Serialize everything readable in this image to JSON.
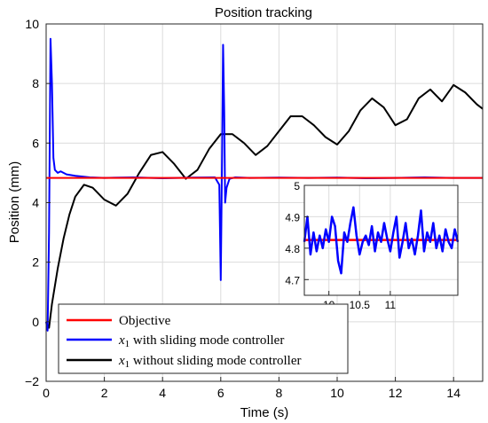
{
  "chart_data": {
    "type": "line",
    "title": "Position tracking",
    "xlabel": "Time (s)",
    "ylabel": "Position (mm)",
    "xlim": [
      0,
      15
    ],
    "ylim": [
      -2,
      10
    ],
    "xticks": [
      0,
      2,
      4,
      6,
      8,
      10,
      12,
      14
    ],
    "yticks": [
      -2,
      0,
      2,
      4,
      6,
      8,
      10
    ],
    "grid": true,
    "legend_position": "bottom-left",
    "legend": [
      {
        "label": "Objective",
        "color": "#ff0000"
      },
      {
        "label_var": "x",
        "label_sub": "1",
        "label_rest": " with sliding mode controller",
        "color": "#0000ff"
      },
      {
        "label_var": "x",
        "label_sub": "1",
        "label_rest": " without sliding mode controller",
        "color": "#000000"
      }
    ],
    "series": [
      {
        "name": "Objective",
        "color": "#ff0000",
        "x": [
          0,
          15
        ],
        "y": [
          4.83,
          4.83
        ]
      },
      {
        "name": "x1 with sliding mode controller",
        "color": "#0000ff",
        "x": [
          0,
          0.05,
          0.1,
          0.15,
          0.2,
          0.25,
          0.3,
          0.4,
          0.5,
          0.7,
          1.0,
          1.5,
          2.0,
          3.0,
          4.0,
          5.0,
          5.8,
          5.95,
          6.0,
          6.05,
          6.08,
          6.12,
          6.15,
          6.2,
          6.3,
          6.5,
          7.0,
          8.0,
          9.0,
          10.0,
          11.0,
          12.0,
          13.0,
          14.0,
          15.0
        ],
        "y": [
          0,
          -0.3,
          3.0,
          9.5,
          8.0,
          5.5,
          5.1,
          5.0,
          5.05,
          4.95,
          4.9,
          4.85,
          4.83,
          4.85,
          4.82,
          4.84,
          4.85,
          4.6,
          1.4,
          6.0,
          9.3,
          7.0,
          4.0,
          4.5,
          4.8,
          4.85,
          4.83,
          4.84,
          4.83,
          4.84,
          4.82,
          4.83,
          4.85,
          4.83,
          4.83
        ]
      },
      {
        "name": "x1 without sliding mode controller",
        "color": "#000000",
        "x": [
          0,
          0.1,
          0.2,
          0.4,
          0.6,
          0.8,
          1.0,
          1.3,
          1.6,
          2.0,
          2.4,
          2.8,
          3.2,
          3.6,
          4.0,
          4.4,
          4.8,
          5.2,
          5.6,
          6.0,
          6.4,
          6.8,
          7.2,
          7.6,
          8.0,
          8.4,
          8.8,
          9.2,
          9.6,
          10.0,
          10.4,
          10.8,
          11.2,
          11.6,
          12.0,
          12.4,
          12.8,
          13.2,
          13.6,
          14.0,
          14.4,
          14.8,
          15.0
        ],
        "y": [
          0,
          -0.2,
          0.6,
          1.8,
          2.8,
          3.6,
          4.2,
          4.6,
          4.5,
          4.1,
          3.9,
          4.3,
          5.0,
          5.6,
          5.7,
          5.3,
          4.8,
          5.1,
          5.8,
          6.3,
          6.3,
          6.0,
          5.6,
          5.9,
          6.4,
          6.9,
          6.9,
          6.6,
          6.2,
          5.95,
          6.4,
          7.1,
          7.5,
          7.2,
          6.6,
          6.8,
          7.5,
          7.8,
          7.4,
          7.95,
          7.7,
          7.3,
          7.15
        ]
      }
    ],
    "inset": {
      "xlim": [
        9.6,
        12.1
      ],
      "ylim": [
        4.65,
        5.0
      ],
      "xticks": [
        10,
        10.5,
        11
      ],
      "yticks": [
        4.7,
        4.8,
        4.9,
        5
      ],
      "series": [
        {
          "name": "Objective",
          "color": "#ff0000",
          "x": [
            9.6,
            12.1
          ],
          "y": [
            4.826,
            4.826
          ]
        },
        {
          "name": "x1 with sliding mode controller",
          "color": "#0000ff",
          "x": [
            9.6,
            9.65,
            9.7,
            9.75,
            9.8,
            9.85,
            9.9,
            9.95,
            10.0,
            10.05,
            10.1,
            10.15,
            10.2,
            10.25,
            10.3,
            10.35,
            10.4,
            10.45,
            10.5,
            10.55,
            10.6,
            10.65,
            10.7,
            10.75,
            10.8,
            10.85,
            10.9,
            10.95,
            11.0,
            11.05,
            11.1,
            11.15,
            11.2,
            11.25,
            11.3,
            11.35,
            11.4,
            11.45,
            11.5,
            11.55,
            11.6,
            11.65,
            11.7,
            11.75,
            11.8,
            11.85,
            11.9,
            11.95,
            12.0,
            12.05,
            12.1
          ],
          "y": [
            4.82,
            4.9,
            4.78,
            4.85,
            4.79,
            4.84,
            4.8,
            4.86,
            4.82,
            4.9,
            4.87,
            4.76,
            4.72,
            4.85,
            4.82,
            4.88,
            4.93,
            4.84,
            4.78,
            4.82,
            4.84,
            4.81,
            4.87,
            4.79,
            4.85,
            4.82,
            4.88,
            4.83,
            4.79,
            4.85,
            4.9,
            4.77,
            4.82,
            4.88,
            4.8,
            4.83,
            4.78,
            4.84,
            4.92,
            4.79,
            4.85,
            4.82,
            4.88,
            4.8,
            4.84,
            4.79,
            4.86,
            4.82,
            4.8,
            4.86,
            4.82
          ]
        }
      ]
    }
  }
}
